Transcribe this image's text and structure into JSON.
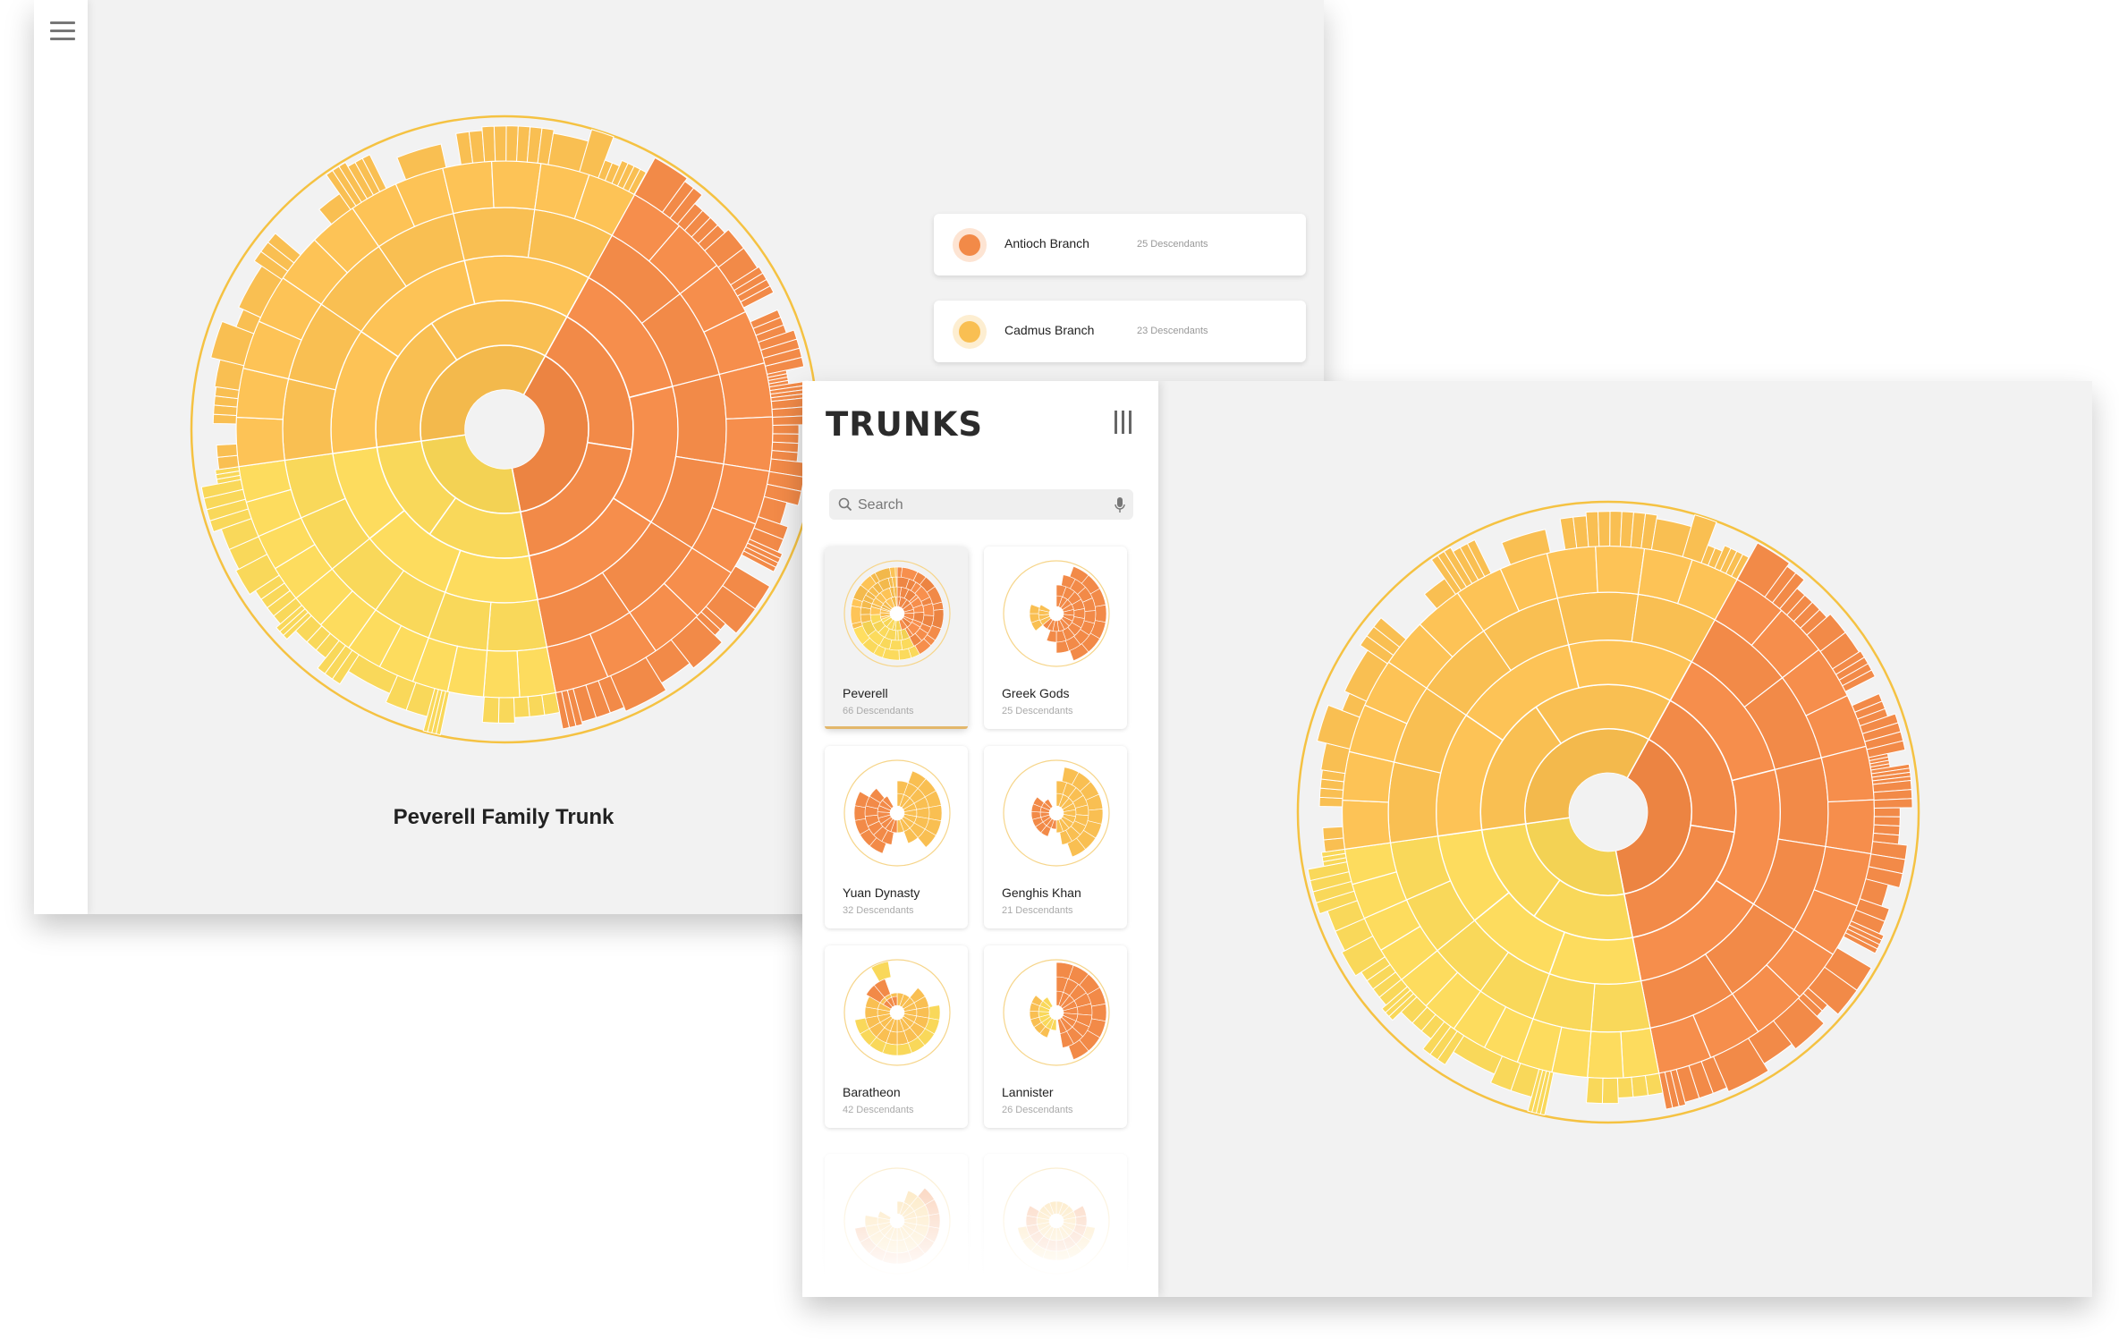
{
  "left_window": {
    "trunk_title": "Peverell Family Trunk",
    "branches": [
      {
        "name": "Antioch Branch",
        "descendants": "25 Descendants",
        "color": "#f28a48"
      },
      {
        "name": "Cadmus Branch",
        "descendants": "23 Descendants",
        "color": "#f9bf52"
      }
    ]
  },
  "right_window": {
    "app_name": "TRUNKS",
    "search": {
      "placeholder": "Search"
    },
    "trunks": [
      {
        "name": "Peverell",
        "descendants": "66 Descendants",
        "selected": true
      },
      {
        "name": "Greek Gods",
        "descendants": "25 Descendants"
      },
      {
        "name": "Yuan Dynasty",
        "descendants": "32 Descendants"
      },
      {
        "name": "Genghis Khan",
        "descendants": "21 Descendants"
      },
      {
        "name": "Baratheon",
        "descendants": "42 Descendants"
      },
      {
        "name": "Lannister",
        "descendants": "26 Descendants"
      }
    ]
  },
  "colors": {
    "antioch_orange": "#f28a48",
    "cadmus_amber": "#f9bf52",
    "ignotus_yellow": "#f9d85a",
    "ring_gold": "#f5c242"
  }
}
